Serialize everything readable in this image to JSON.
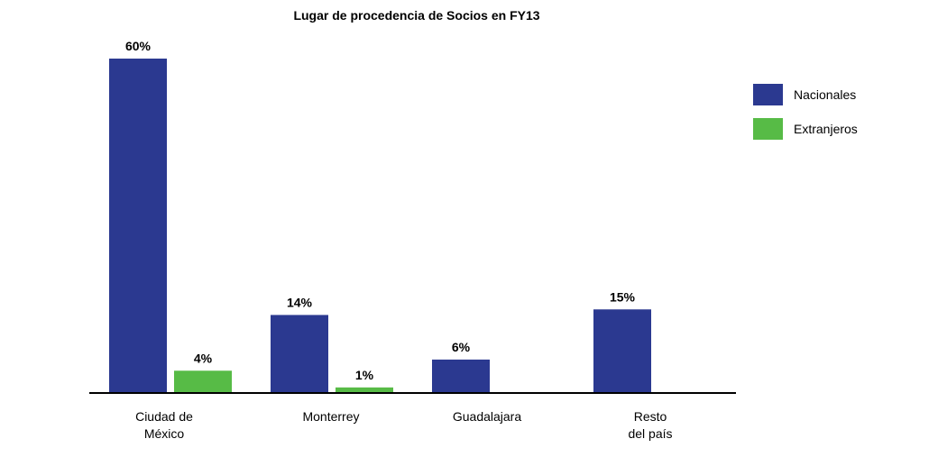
{
  "chart_data": {
    "type": "bar",
    "title": "Lugar de procedencia de Socios en FY13",
    "categories": [
      [
        "Ciudad de",
        "México"
      ],
      [
        "Monterrey"
      ],
      [
        "Guadalajara"
      ],
      [
        "Resto",
        "del país"
      ]
    ],
    "series": [
      {
        "name": "Nacionales",
        "color": "#2b3990",
        "values": [
          60,
          14,
          6,
          15
        ],
        "labels": [
          "60%",
          "14%",
          "6%",
          "15%"
        ]
      },
      {
        "name": "Extranjeros",
        "color": "#57bb46",
        "values": [
          4,
          1,
          null,
          null
        ],
        "labels": [
          "4%",
          "1%",
          "",
          ""
        ]
      }
    ],
    "ylim": [
      0,
      60
    ],
    "grid": false,
    "legend_position": "right"
  }
}
